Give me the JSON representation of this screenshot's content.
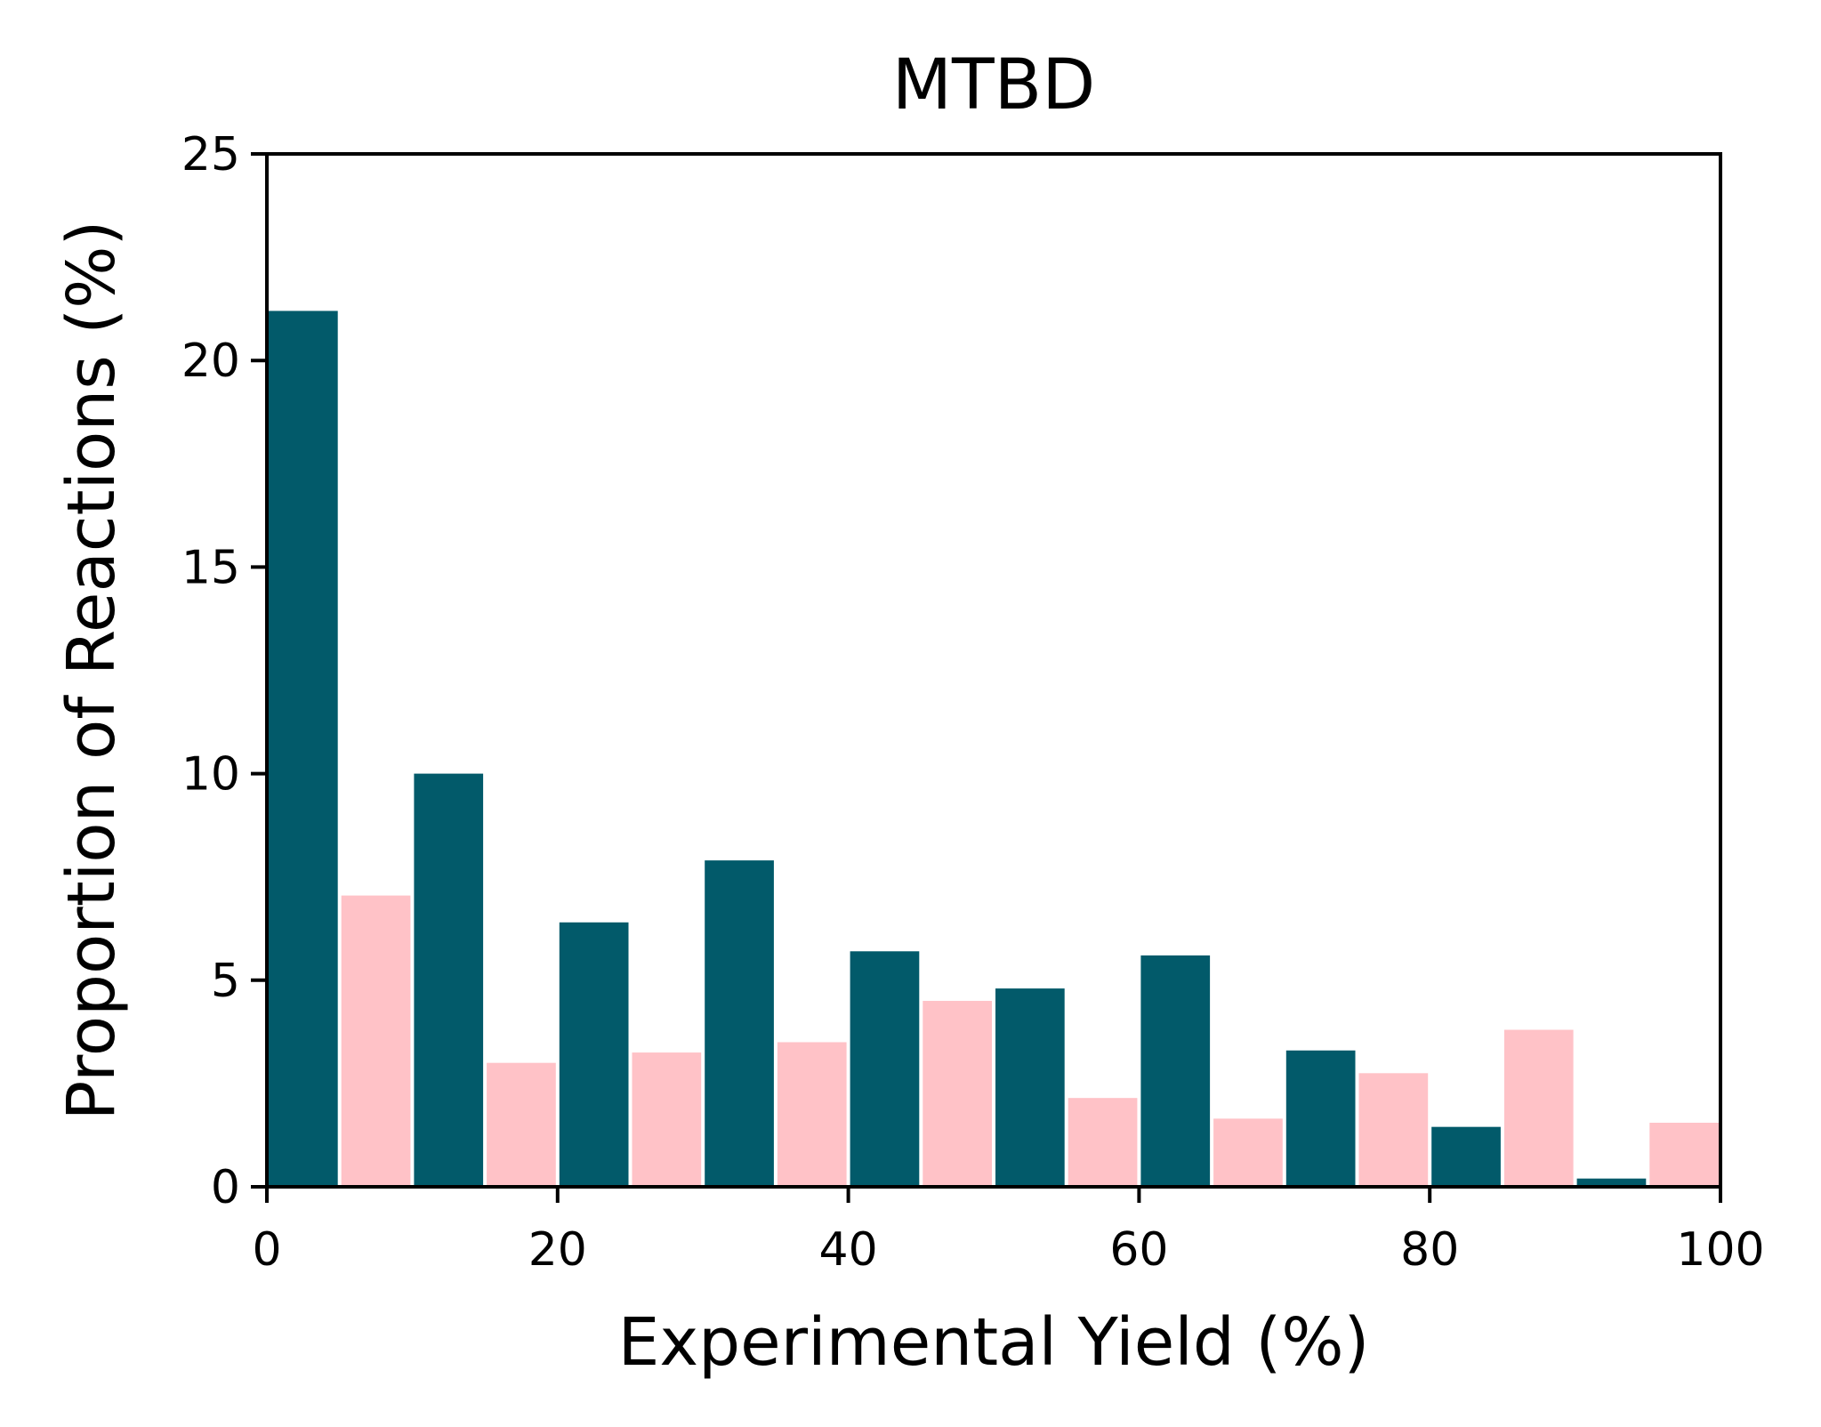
{
  "chart_data": {
    "type": "bar",
    "title": "MTBD",
    "xlabel": "Experimental Yield (%)",
    "ylabel": "Proportion of Reactions (%)",
    "xlim": [
      0,
      100
    ],
    "ylim": [
      0,
      25
    ],
    "xticks": [
      "0",
      "20",
      "40",
      "60",
      "80",
      "100"
    ],
    "yticks": [
      "0",
      "5",
      "10",
      "15",
      "20",
      "25"
    ],
    "grid": false,
    "legend": "none",
    "series": [
      {
        "color": "#025a6a",
        "x_start": [
          0,
          10,
          20,
          30,
          40,
          50,
          60,
          70,
          80,
          90
        ],
        "x_end": [
          5,
          15,
          25,
          35,
          45,
          55,
          65,
          75,
          85,
          95
        ],
        "values": [
          21.2,
          10.0,
          6.4,
          7.9,
          5.7,
          4.8,
          5.6,
          3.3,
          1.45,
          0.2
        ]
      },
      {
        "color": "#ffc2c7",
        "x_start": [
          5,
          15,
          25,
          35,
          45,
          55,
          65,
          75,
          85,
          95
        ],
        "x_end": [
          10,
          20,
          30,
          40,
          50,
          60,
          70,
          80,
          90,
          100
        ],
        "values": [
          7.05,
          3.0,
          3.25,
          3.5,
          4.5,
          2.15,
          1.65,
          2.75,
          3.8,
          1.55
        ]
      }
    ]
  }
}
